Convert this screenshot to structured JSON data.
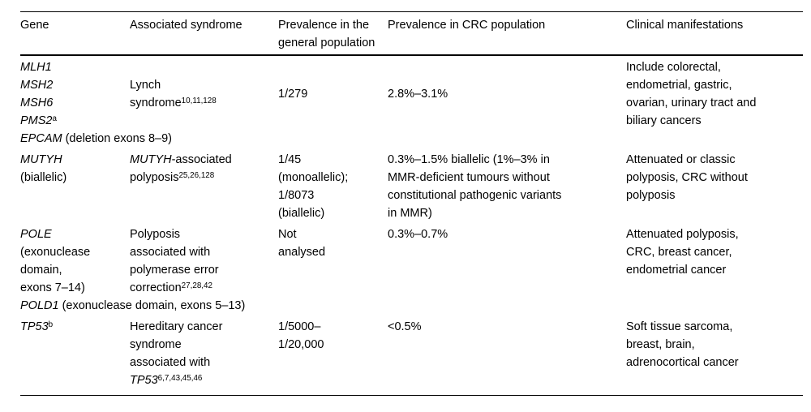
{
  "page": {
    "background_color": "#ffffff",
    "text_color": "#000000",
    "rule_color": "#000000"
  },
  "table": {
    "columns": [
      {
        "label": "Gene"
      },
      {
        "label": "Associated syndrome"
      },
      {
        "label": "Prevalence in the general population"
      },
      {
        "label": "Prevalence in CRC population"
      },
      {
        "label": "Clinical manifestations"
      }
    ],
    "groups": [
      {
        "rows": [
          {
            "cells": [
              {
                "name": "cell-gene-lynch",
                "valign": "top",
                "lines": [
                  [
                    {
                      "t": "MLH1",
                      "i": true
                    }
                  ],
                  [
                    {
                      "t": "MSH2",
                      "i": true
                    }
                  ],
                  [
                    {
                      "t": "MSH6",
                      "i": true
                    }
                  ],
                  [
                    {
                      "t": "PMS2",
                      "i": true
                    },
                    {
                      "t": "a",
                      "sup": true
                    }
                  ]
                ]
              },
              {
                "name": "cell-syndrome-lynch",
                "valign": "middle",
                "lines": [
                  [
                    {
                      "t": "Lynch"
                    }
                  ],
                  [
                    {
                      "t": "syndrome"
                    },
                    {
                      "t": "10,11,128",
                      "sup": true
                    }
                  ]
                ]
              },
              {
                "name": "cell-prevalence-general-lynch",
                "valign": "middle",
                "lines": [
                  [
                    {
                      "t": "1/279"
                    }
                  ]
                ]
              },
              {
                "name": "cell-prevalence-crc-lynch",
                "valign": "middle",
                "lines": [
                  [
                    {
                      "t": "2.8%–3.1%"
                    }
                  ]
                ]
              },
              {
                "name": "cell-clinical-lynch",
                "valign": "top",
                "rowspan": 2,
                "lines": [
                  [
                    {
                      "t": "Include colorectal,"
                    }
                  ],
                  [
                    {
                      "t": "endometrial, gastric,"
                    }
                  ],
                  [
                    {
                      "t": "ovarian, urinary tract and"
                    }
                  ],
                  [
                    {
                      "t": "biliary cancers"
                    }
                  ]
                ]
              }
            ]
          },
          {
            "cells": [
              {
                "name": "cell-gene-epcam",
                "valign": "top",
                "colspan": 4,
                "lines": [
                  [
                    {
                      "t": "EPCAM",
                      "i": true
                    },
                    {
                      "t": " (deletion exons 8–9)"
                    }
                  ]
                ]
              }
            ]
          }
        ]
      },
      {
        "rows": [
          {
            "cells": [
              {
                "name": "cell-gene-mutyh",
                "valign": "top",
                "lines": [
                  [
                    {
                      "t": "MUTYH",
                      "i": true
                    }
                  ],
                  [
                    {
                      "t": "(biallelic)"
                    }
                  ]
                ]
              },
              {
                "name": "cell-syndrome-mutyh",
                "valign": "top",
                "lines": [
                  [
                    {
                      "t": "MUTYH",
                      "i": true
                    },
                    {
                      "t": "-associated"
                    }
                  ],
                  [
                    {
                      "t": "polyposis"
                    },
                    {
                      "t": "25,26,128",
                      "sup": true
                    }
                  ]
                ]
              },
              {
                "name": "cell-prevalence-general-mutyh",
                "valign": "top",
                "lines": [
                  [
                    {
                      "t": "1/45"
                    }
                  ],
                  [
                    {
                      "t": "(monoallelic);"
                    }
                  ],
                  [
                    {
                      "t": "1/8073"
                    }
                  ],
                  [
                    {
                      "t": "(biallelic)"
                    }
                  ]
                ]
              },
              {
                "name": "cell-prevalence-crc-mutyh",
                "valign": "top",
                "lines": [
                  [
                    {
                      "t": "0.3%–1.5% biallelic (1%–3% in"
                    }
                  ],
                  [
                    {
                      "t": "MMR-deficient tumours without"
                    }
                  ],
                  [
                    {
                      "t": "constitutional pathogenic variants"
                    }
                  ],
                  [
                    {
                      "t": "in MMR)"
                    }
                  ]
                ]
              },
              {
                "name": "cell-clinical-mutyh",
                "valign": "top",
                "lines": [
                  [
                    {
                      "t": "Attenuated or classic"
                    }
                  ],
                  [
                    {
                      "t": "polyposis, CRC without"
                    }
                  ],
                  [
                    {
                      "t": "polyposis"
                    }
                  ]
                ]
              }
            ]
          }
        ]
      },
      {
        "rows": [
          {
            "cells": [
              {
                "name": "cell-gene-pole",
                "valign": "top",
                "lines": [
                  [
                    {
                      "t": "POLE",
                      "i": true
                    }
                  ],
                  [
                    {
                      "t": "(exonuclease"
                    }
                  ],
                  [
                    {
                      "t": "domain,"
                    }
                  ],
                  [
                    {
                      "t": "exons 7–14)"
                    }
                  ]
                ]
              },
              {
                "name": "cell-syndrome-pole",
                "valign": "top",
                "lines": [
                  [
                    {
                      "t": "Polyposis"
                    }
                  ],
                  [
                    {
                      "t": "associated with"
                    }
                  ],
                  [
                    {
                      "t": "polymerase error"
                    }
                  ],
                  [
                    {
                      "t": "correction"
                    },
                    {
                      "t": "27,28,42",
                      "sup": true
                    }
                  ]
                ]
              },
              {
                "name": "cell-prevalence-general-pole",
                "valign": "top",
                "lines": [
                  [
                    {
                      "t": "Not"
                    }
                  ],
                  [
                    {
                      "t": "analysed"
                    }
                  ]
                ]
              },
              {
                "name": "cell-prevalence-crc-pole",
                "valign": "top",
                "lines": [
                  [
                    {
                      "t": "0.3%–0.7%"
                    }
                  ]
                ]
              },
              {
                "name": "cell-clinical-pole",
                "valign": "top",
                "rowspan": 2,
                "lines": [
                  [
                    {
                      "t": "Attenuated polyposis,"
                    }
                  ],
                  [
                    {
                      "t": "CRC, breast cancer,"
                    }
                  ],
                  [
                    {
                      "t": "endometrial cancer"
                    }
                  ]
                ]
              }
            ]
          },
          {
            "cells": [
              {
                "name": "cell-gene-pold1",
                "valign": "top",
                "colspan": 4,
                "lines": [
                  [
                    {
                      "t": "POLD1",
                      "i": true
                    },
                    {
                      "t": " (exonuclease domain, exons 5–13)"
                    }
                  ]
                ]
              }
            ]
          }
        ]
      },
      {
        "rows": [
          {
            "cells": [
              {
                "name": "cell-gene-tp53",
                "valign": "top",
                "lines": [
                  [
                    {
                      "t": "TP53",
                      "i": true
                    },
                    {
                      "t": "b",
                      "sup": true
                    }
                  ]
                ]
              },
              {
                "name": "cell-syndrome-tp53",
                "valign": "top",
                "lines": [
                  [
                    {
                      "t": "Hereditary cancer"
                    }
                  ],
                  [
                    {
                      "t": "syndrome"
                    }
                  ],
                  [
                    {
                      "t": "associated with"
                    }
                  ],
                  [
                    {
                      "t": "TP53",
                      "i": true
                    },
                    {
                      "t": "6,7,43,45,46",
                      "sup": true
                    }
                  ]
                ]
              },
              {
                "name": "cell-prevalence-general-tp53",
                "valign": "top",
                "lines": [
                  [
                    {
                      "t": "1/5000–"
                    }
                  ],
                  [
                    {
                      "t": "1/20,000"
                    }
                  ]
                ]
              },
              {
                "name": "cell-prevalence-crc-tp53",
                "valign": "top",
                "lines": [
                  [
                    {
                      "t": "<0.5%"
                    }
                  ]
                ]
              },
              {
                "name": "cell-clinical-tp53",
                "valign": "top",
                "lines": [
                  [
                    {
                      "t": "Soft tissue sarcoma,"
                    }
                  ],
                  [
                    {
                      "t": "breast, brain,"
                    }
                  ],
                  [
                    {
                      "t": "adrenocortical cancer"
                    }
                  ]
                ]
              }
            ]
          }
        ]
      }
    ]
  }
}
